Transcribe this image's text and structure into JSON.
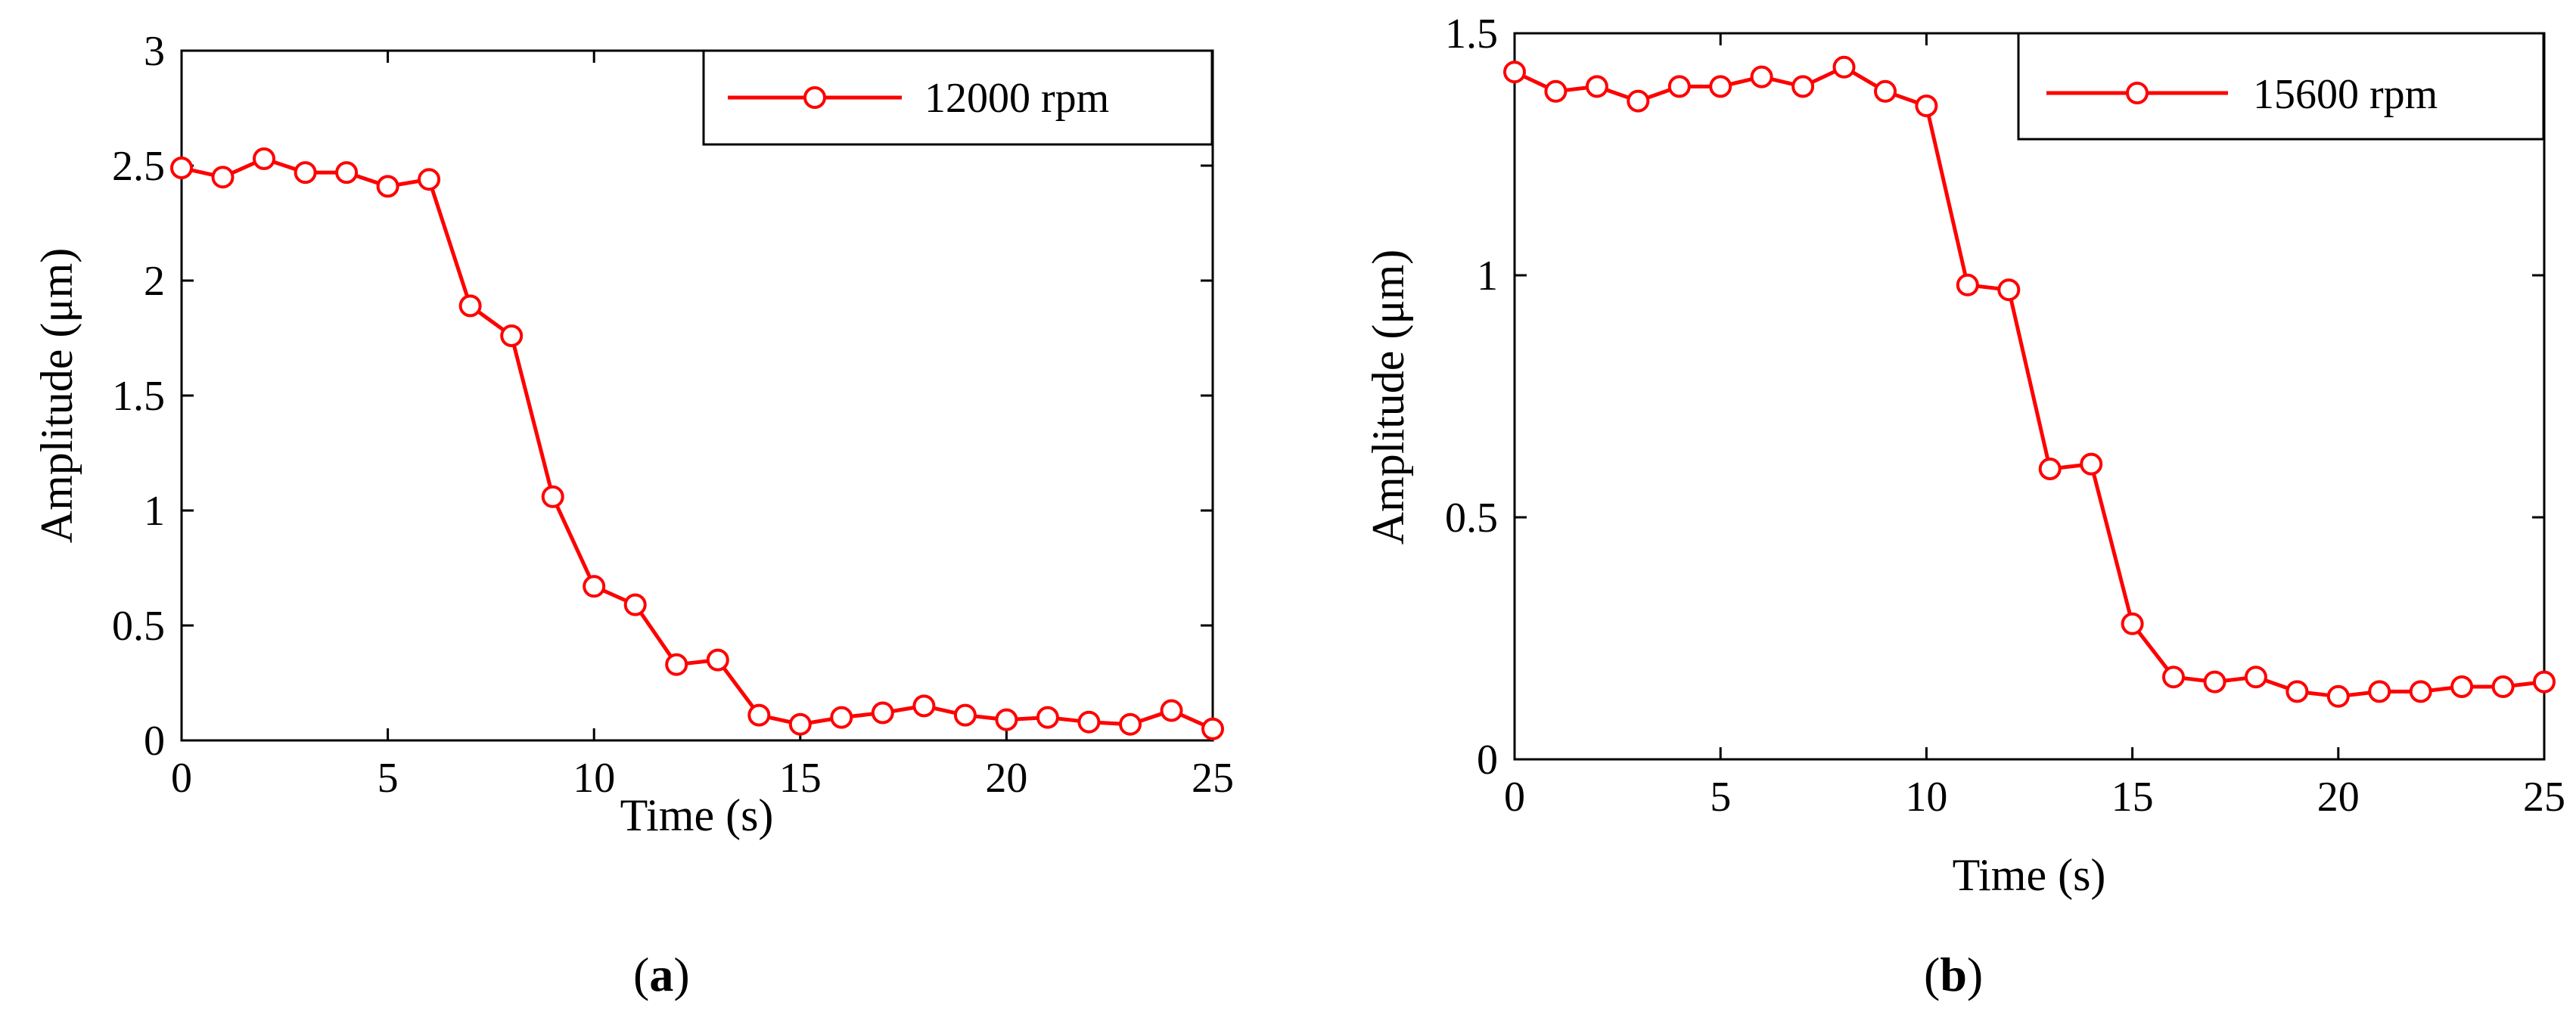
{
  "chart_data": [
    {
      "type": "line",
      "panel": "a",
      "title": "",
      "xlabel": "Time (s)",
      "ylabel": "Amplitude (μm)",
      "xlim": [
        0,
        25
      ],
      "ylim": [
        0,
        3
      ],
      "xticks": [
        0,
        5,
        10,
        15,
        20,
        25
      ],
      "yticks": [
        0,
        0.5,
        1,
        1.5,
        2,
        2.5,
        3
      ],
      "ytick_labels": [
        "0",
        "0.5",
        "1",
        "1.5",
        "2",
        "2.5",
        "3"
      ],
      "grid": false,
      "legend_position": "top-right",
      "series": [
        {
          "name": "12000 rpm",
          "color": "#ff0000",
          "marker": "circle",
          "x": [
            0,
            1,
            2,
            3,
            4,
            5,
            6,
            7,
            8,
            9,
            10,
            11,
            12,
            13,
            14,
            15,
            16,
            17,
            18,
            19,
            20,
            21,
            22,
            23,
            24,
            25
          ],
          "values": [
            2.49,
            2.45,
            2.53,
            2.47,
            2.47,
            2.41,
            2.44,
            1.89,
            1.76,
            1.06,
            0.67,
            0.59,
            0.33,
            0.35,
            0.11,
            0.07,
            0.1,
            0.12,
            0.15,
            0.11,
            0.09,
            0.1,
            0.08,
            0.07,
            0.13,
            0.05
          ]
        }
      ]
    },
    {
      "type": "line",
      "panel": "b",
      "title": "",
      "xlabel": "Time (s)",
      "ylabel": "Amplitude (μm)",
      "xlim": [
        0,
        25
      ],
      "ylim": [
        0,
        1.5
      ],
      "xticks": [
        0,
        5,
        10,
        15,
        20,
        25
      ],
      "yticks": [
        0,
        0.5,
        1,
        1.5
      ],
      "ytick_labels": [
        "0",
        "0.5",
        "1",
        "1.5"
      ],
      "grid": false,
      "legend_position": "top-right",
      "series": [
        {
          "name": "15600 rpm",
          "color": "#ff0000",
          "marker": "circle",
          "x": [
            0,
            1,
            2,
            3,
            4,
            5,
            6,
            7,
            8,
            9,
            10,
            11,
            12,
            13,
            14,
            15,
            16,
            17,
            18,
            19,
            20,
            21,
            22,
            23,
            24,
            25
          ],
          "values": [
            1.42,
            1.38,
            1.39,
            1.36,
            1.39,
            1.39,
            1.41,
            1.39,
            1.43,
            1.38,
            1.35,
            0.98,
            0.97,
            0.6,
            0.61,
            0.28,
            0.17,
            0.16,
            0.17,
            0.14,
            0.13,
            0.14,
            0.14,
            0.15,
            0.15,
            0.16
          ]
        }
      ]
    }
  ],
  "captions": [
    {
      "open": "(",
      "label": "a",
      "close": ")"
    },
    {
      "open": "(",
      "label": "b",
      "close": ")"
    }
  ]
}
